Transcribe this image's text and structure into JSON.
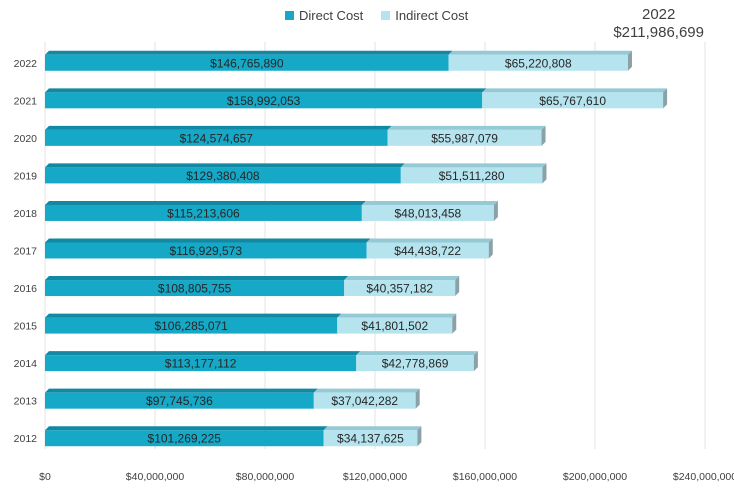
{
  "colors": {
    "direct": "#16A8C7",
    "direct_top": "#1288A3",
    "indirect": "#B5E4EF",
    "indirect_top": "#95C9D4",
    "side": "#8AA1A8",
    "grid": "#E3E3E3",
    "text": "#404040"
  },
  "legend": [
    {
      "label": "Direct Cost",
      "color": "#16A8C7"
    },
    {
      "label": "Indirect Cost",
      "color": "#B5E4EF"
    }
  ],
  "annotation": {
    "year": "2022",
    "total": "$211,986,699"
  },
  "chart_data": {
    "type": "bar",
    "orientation": "horizontal",
    "stacked": true,
    "title": "",
    "xlabel": "",
    "ylabel": "",
    "xlim": [
      0,
      240000000
    ],
    "x_ticks": [
      0,
      40000000,
      80000000,
      120000000,
      160000000,
      200000000,
      240000000
    ],
    "x_tick_labels": [
      "$0",
      "$40,000,000",
      "$80,000,000",
      "$120,000,000",
      "$160,000,000",
      "$200,000,000",
      "$240,000,000"
    ],
    "grid": true,
    "legend_position": "top",
    "categories": [
      "2022",
      "2021",
      "2020",
      "2019",
      "2018",
      "2017",
      "2016",
      "2015",
      "2014",
      "2013",
      "2012"
    ],
    "series": [
      {
        "name": "Direct Cost",
        "values": [
          146765890,
          158992053,
          124574657,
          129380408,
          115213606,
          116929573,
          108805755,
          106285071,
          113177112,
          97745736,
          101269225
        ],
        "labels": [
          "$146,765,890",
          "$158,992,053",
          "$124,574,657",
          "$129,380,408",
          "$115,213,606",
          "$116,929,573",
          "$108,805,755",
          "$106,285,071",
          "$113,177,112",
          "$97,745,736",
          "$101,269,225"
        ]
      },
      {
        "name": "Indirect Cost",
        "values": [
          65220808,
          65767610,
          55987079,
          51511280,
          48013458,
          44438722,
          40357182,
          41801502,
          42778869,
          37042282,
          34137625
        ],
        "labels": [
          "$65,220,808",
          "$65,767,610",
          "$55,987,079",
          "$51,511,280",
          "$48,013,458",
          "$44,438,722",
          "$40,357,182",
          "$41,801,502",
          "$42,778,869",
          "$37,042,282",
          "$34,137,625"
        ]
      }
    ]
  }
}
